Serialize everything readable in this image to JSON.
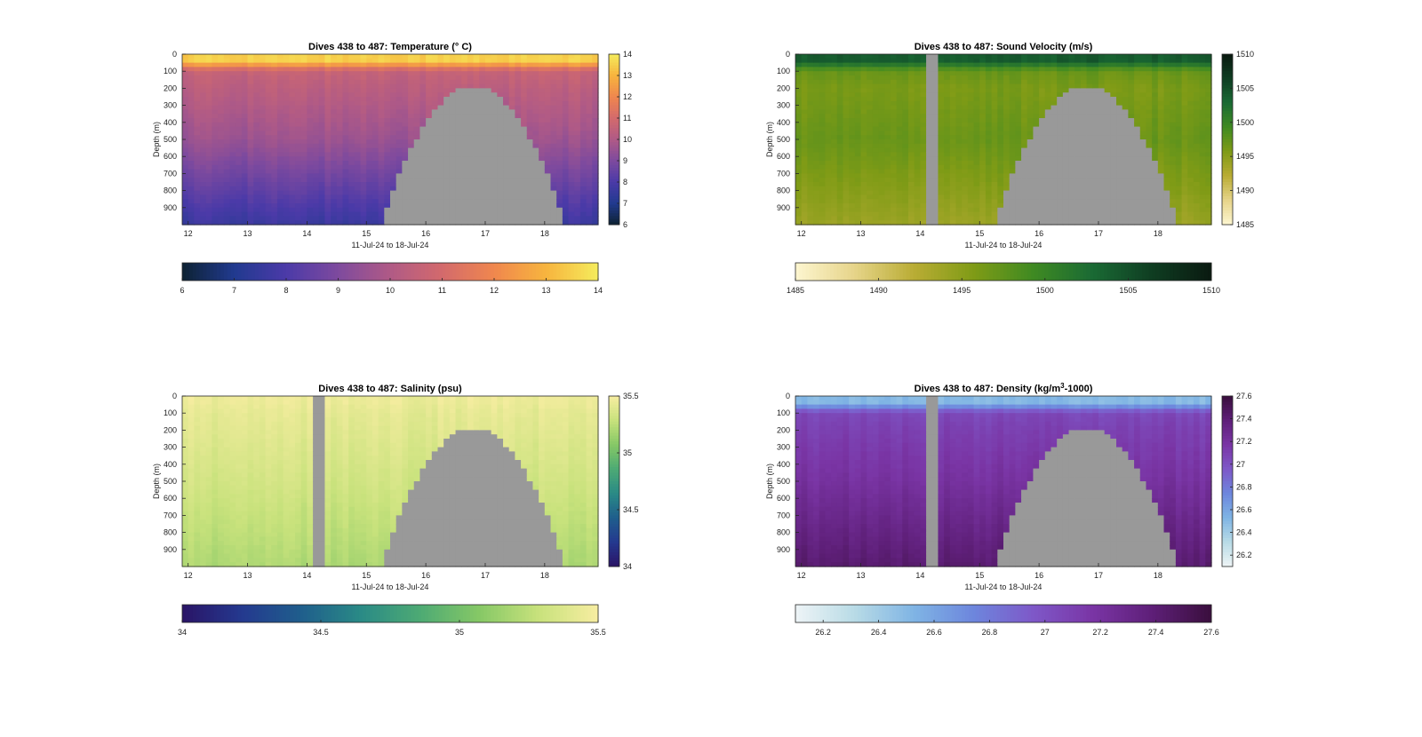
{
  "figure": {
    "ylabel": "Depth (m)",
    "xlabel": "11-Jul-24 to 18-Jul-24",
    "colors": {
      "seafloor": "#999999",
      "axis": "#262626"
    }
  },
  "chart_data": [
    {
      "type": "heatmap",
      "variable": "temperature",
      "title": "Dives 438 to 487: Temperature (° C)",
      "xlabel": "11-Jul-24 to 18-Jul-24",
      "ylabel": "Depth (m)",
      "x_ticks": [
        "12",
        "13",
        "14",
        "15",
        "16",
        "17",
        "18"
      ],
      "y_ticks": [
        "0",
        "100",
        "200",
        "300",
        "400",
        "500",
        "600",
        "700",
        "800",
        "900"
      ],
      "xlim": [
        11.9,
        18.9
      ],
      "ylim": [
        0,
        1000
      ],
      "clim": [
        6,
        14
      ],
      "colorbar_ticks_side": [
        "6",
        "7",
        "8",
        "9",
        "10",
        "11",
        "12",
        "13",
        "14"
      ],
      "colorbar_ticks_bottom": [
        "6",
        "7",
        "8",
        "9",
        "10",
        "11",
        "12",
        "13",
        "14"
      ],
      "colormap": [
        "#0d2233",
        "#213a8f",
        "#4b3aa8",
        "#7e4a9e",
        "#b05a86",
        "#d36a6c",
        "#f0874e",
        "#f7b43e",
        "#f5ec5c"
      ],
      "profile": {
        "surface": 13.5,
        "mixed_depth": 40,
        "at100": 10.6,
        "at200": 10.3,
        "at500": 9.6,
        "at1000": 7.6
      },
      "column_missing": [],
      "seamount": true
    },
    {
      "type": "heatmap",
      "variable": "sound_velocity",
      "title": "Dives 438 to 487: Sound Velocity (m/s)",
      "xlabel": "11-Jul-24 to 18-Jul-24",
      "ylabel": "Depth (m)",
      "x_ticks": [
        "12",
        "13",
        "14",
        "15",
        "16",
        "17",
        "18"
      ],
      "y_ticks": [
        "0",
        "100",
        "200",
        "300",
        "400",
        "500",
        "600",
        "700",
        "800",
        "900"
      ],
      "xlim": [
        11.9,
        18.9
      ],
      "ylim": [
        0,
        1000
      ],
      "clim": [
        1485,
        1510
      ],
      "colorbar_ticks_side": [
        "1485",
        "1490",
        "1495",
        "1500",
        "1505",
        "1510"
      ],
      "colorbar_ticks_bottom": [
        "1485",
        "1490",
        "1495",
        "1500",
        "1505",
        "1510"
      ],
      "colormap": [
        "#fdf6d0",
        "#e6d489",
        "#b9ac34",
        "#7f9b16",
        "#3f8a22",
        "#1a6a34",
        "#0f3d22",
        "#0a1a10"
      ],
      "profile": {
        "surface": 1504,
        "mixed_depth": 40,
        "at100": 1497,
        "at200": 1496,
        "at500": 1497,
        "at1000": 1494
      },
      "column_missing": [
        14.2
      ],
      "seamount": true
    },
    {
      "type": "heatmap",
      "variable": "salinity",
      "title": "Dives 438 to 487: Salinity (psu)",
      "xlabel": "11-Jul-24 to 18-Jul-24",
      "ylabel": "Depth (m)",
      "x_ticks": [
        "12",
        "13",
        "14",
        "15",
        "16",
        "17",
        "18"
      ],
      "y_ticks": [
        "0",
        "100",
        "200",
        "300",
        "400",
        "500",
        "600",
        "700",
        "800",
        "900"
      ],
      "xlim": [
        11.9,
        18.9
      ],
      "ylim": [
        0,
        1000
      ],
      "clim": [
        34,
        35.5
      ],
      "colorbar_ticks_side": [
        "34",
        "34.5",
        "35",
        "35.5"
      ],
      "colorbar_ticks_bottom": [
        "34",
        "34.5",
        "35",
        "35.5"
      ],
      "colormap": [
        "#2a1466",
        "#24398f",
        "#1f5e8c",
        "#2a8a86",
        "#4daa74",
        "#86c866",
        "#c8e27c",
        "#f7eda1"
      ],
      "profile": {
        "surface": 35.45,
        "mixed_depth": 40,
        "at100": 35.42,
        "at200": 35.4,
        "at500": 35.33,
        "at1000": 35.2
      },
      "column_missing": [
        14.2
      ],
      "seamount": true
    },
    {
      "type": "heatmap",
      "variable": "density",
      "title": "Dives 438 to 487: Density (kg/m3-1000)",
      "title_parts": [
        "Dives 438 to 487: Density (kg/m",
        "3",
        "-1000)"
      ],
      "xlabel": "11-Jul-24 to 18-Jul-24",
      "ylabel": "Depth (m)",
      "x_ticks": [
        "12",
        "13",
        "14",
        "15",
        "16",
        "17",
        "18"
      ],
      "y_ticks": [
        "0",
        "100",
        "200",
        "300",
        "400",
        "500",
        "600",
        "700",
        "800",
        "900"
      ],
      "xlim": [
        11.9,
        18.9
      ],
      "ylim": [
        0,
        1000
      ],
      "clim": [
        26.1,
        27.6
      ],
      "colorbar_ticks_side": [
        "26.2",
        "26.4",
        "26.6",
        "26.8",
        "27",
        "27.2",
        "27.4",
        "27.6"
      ],
      "colorbar_ticks_bottom": [
        "26.2",
        "26.4",
        "26.6",
        "26.8",
        "27",
        "27.2",
        "27.4",
        "27.6"
      ],
      "colormap": [
        "#eef4f6",
        "#b8dbe6",
        "#7fb4e4",
        "#6d86dd",
        "#7e58c8",
        "#7a35a5",
        "#5e1f78",
        "#3a0f3d"
      ],
      "profile": {
        "surface": 26.5,
        "mixed_depth": 40,
        "at100": 27.05,
        "at200": 27.1,
        "at500": 27.2,
        "at1000": 27.42
      },
      "column_missing": [
        14.2
      ],
      "seamount": true
    }
  ]
}
